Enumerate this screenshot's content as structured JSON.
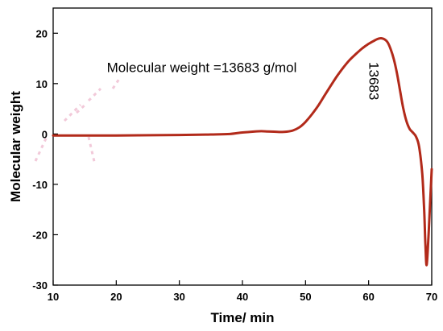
{
  "chart_data": {
    "type": "line",
    "xlabel": "Time/ min",
    "ylabel": "Molecular weight",
    "xlim": [
      10,
      70
    ],
    "ylim": [
      -30,
      25
    ],
    "x_ticks": [
      10,
      20,
      30,
      40,
      50,
      60,
      70
    ],
    "y_ticks": [
      -30,
      -20,
      -10,
      0,
      10,
      20
    ],
    "grid": false,
    "series": [
      {
        "color": "#b22a1a",
        "x": [
          10,
          20,
          30,
          35,
          38,
          40,
          42,
          43,
          44,
          45,
          46,
          47,
          48,
          49,
          50,
          51,
          52,
          53,
          54,
          55,
          56,
          57,
          58,
          59,
          60,
          61,
          61.5,
          62,
          62.5,
          63,
          63.5,
          64,
          64.5,
          65,
          65.5,
          66,
          66.5,
          67,
          67.5,
          68,
          68.5,
          68.8,
          69,
          69.2,
          69.5,
          70
        ],
        "y": [
          -0.3,
          -0.3,
          -0.2,
          -0.1,
          0.0,
          0.3,
          0.5,
          0.55,
          0.5,
          0.45,
          0.4,
          0.45,
          0.7,
          1.3,
          2.4,
          3.9,
          5.6,
          7.6,
          9.6,
          11.5,
          13.2,
          14.7,
          15.9,
          17.0,
          17.9,
          18.6,
          18.9,
          19.0,
          18.8,
          18.2,
          16.8,
          14.8,
          12.0,
          8.5,
          5.0,
          2.5,
          1.0,
          0.3,
          -0.5,
          -2.5,
          -8.0,
          -15.0,
          -22.0,
          -26.0,
          -20.0,
          -7.0
        ]
      }
    ],
    "annotations": [
      {
        "text": "Molecular weight =13683 g/mol",
        "x": 18.5,
        "y": 12.3
      },
      {
        "text": "13683",
        "x": 60.1,
        "y": 10.5,
        "rotation": 90
      }
    ]
  }
}
